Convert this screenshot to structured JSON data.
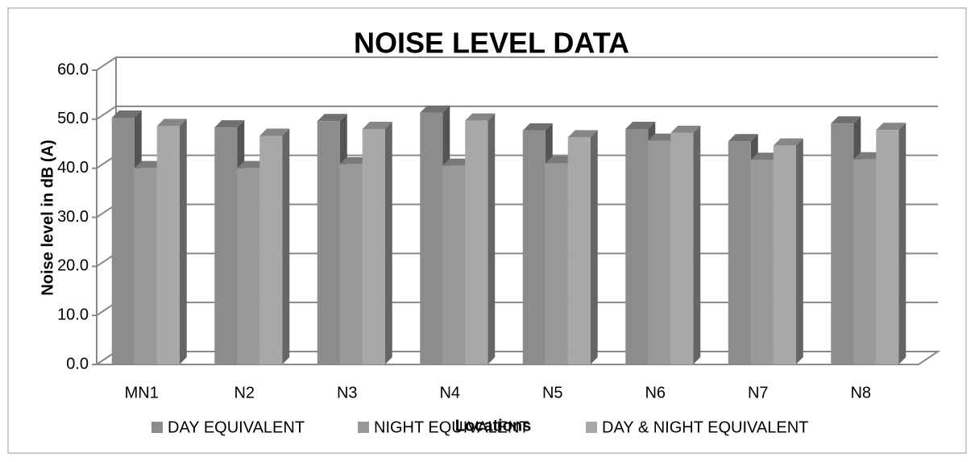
{
  "chart_data": {
    "type": "bar3d",
    "title": "NOISE LEVEL DATA",
    "x_label": "Locations",
    "y_label": "Noise level in dB (A)",
    "categories": [
      "MN1",
      "N2",
      "N3",
      "N4",
      "N5",
      "N6",
      "N7",
      "N8"
    ],
    "series": [
      {
        "name": "DAY EQUIVALENT",
        "color": "#8c8c8c",
        "values": [
          50.3,
          48.3,
          49.6,
          51.3,
          47.7,
          48.0,
          45.5,
          49.1
        ]
      },
      {
        "name": "NIGHT EQUIVALENT",
        "color": "#999999",
        "values": [
          40.0,
          40.0,
          40.8,
          40.5,
          41.0,
          45.6,
          41.7,
          41.8
        ]
      },
      {
        "name": "DAY & NIGHT EQUIVALENT",
        "color": "#a8a8a8",
        "values": [
          48.6,
          46.6,
          48.0,
          49.7,
          46.3,
          47.2,
          44.6,
          47.8
        ]
      }
    ],
    "ylim": [
      0,
      60
    ],
    "yticks": [
      {
        "value": 0,
        "label": "0.0"
      },
      {
        "value": 10,
        "label": "10.0"
      },
      {
        "value": 20,
        "label": "20.0"
      },
      {
        "value": 30,
        "label": "30.0"
      },
      {
        "value": 40,
        "label": "40.0"
      },
      {
        "value": 50,
        "label": "50.0"
      },
      {
        "value": 60,
        "label": "60.0"
      }
    ],
    "grid": true,
    "legend": "bottom"
  }
}
